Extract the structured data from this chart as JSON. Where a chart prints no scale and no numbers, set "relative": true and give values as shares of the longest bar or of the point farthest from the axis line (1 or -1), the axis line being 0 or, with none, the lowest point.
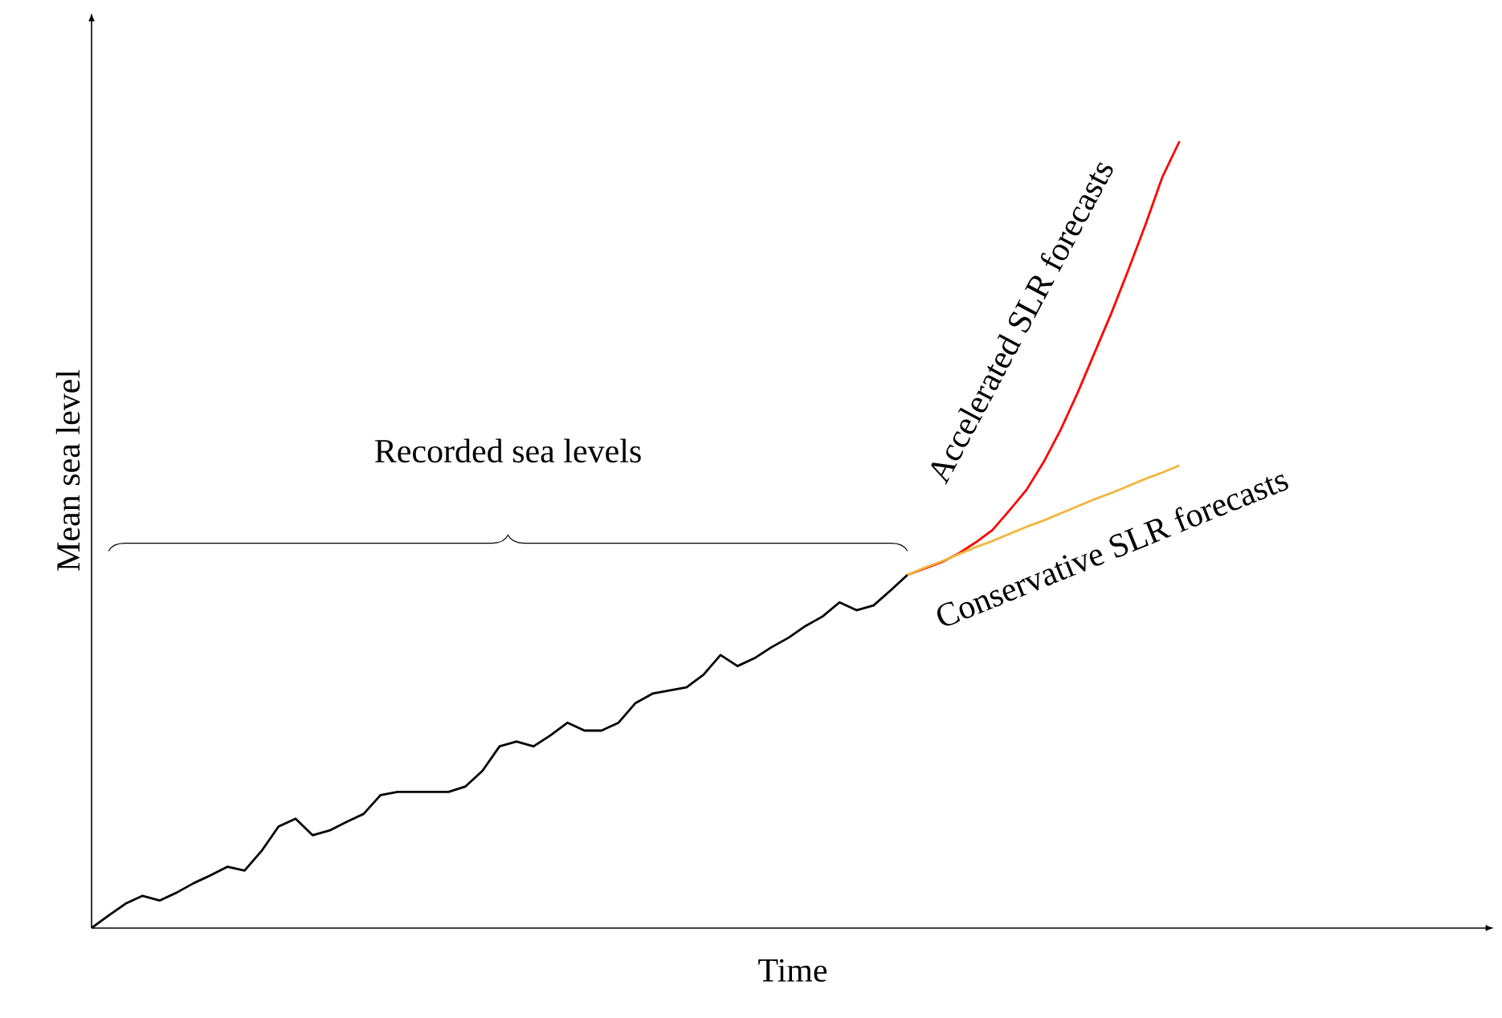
{
  "chart_data": {
    "type": "line",
    "relative": true,
    "xlabel": "Time",
    "ylabel": "Mean sea level",
    "marker": "none",
    "line_style": "solid",
    "annotations": [
      "Recorded sea levels"
    ],
    "categories": [
      null,
      null,
      null,
      null,
      null,
      null,
      null,
      null,
      null,
      null,
      null,
      null,
      null,
      null,
      null,
      null,
      null,
      null,
      null,
      null,
      null,
      null,
      null,
      null,
      null,
      null,
      null,
      null,
      null,
      null,
      null,
      null,
      null,
      null,
      null,
      null,
      null,
      null,
      null,
      null,
      null,
      null,
      null,
      null,
      null,
      null,
      null,
      null,
      null,
      null,
      null,
      null,
      null,
      null,
      null,
      null,
      null,
      null,
      null,
      null,
      null,
      null,
      null,
      null,
      null,
      null,
      null,
      null,
      null,
      null,
      null,
      null,
      null,
      null,
      null,
      null,
      null,
      null,
      null,
      null,
      null,
      null,
      null
    ],
    "series": [
      {
        "color": "#000000",
        "values": [
          0,
          0.016,
          0.031,
          0.041,
          0.035,
          0.045,
          0.057,
          0.067,
          0.078,
          0.073,
          0.098,
          0.129,
          0.139,
          0.118,
          0.124,
          0.135,
          0.145,
          0.169,
          0.173,
          0.173,
          0.173,
          0.173,
          0.18,
          0.2,
          0.231,
          0.237,
          0.231,
          0.245,
          0.261,
          0.251,
          0.251,
          0.261,
          0.286,
          0.298,
          0.302,
          0.306,
          0.322,
          0.347,
          0.333,
          0.343,
          0.357,
          0.369,
          0.384,
          0.396,
          0.414,
          0.404,
          0.41,
          0.429,
          0.449,
          null,
          null,
          null,
          null,
          null,
          null,
          null,
          null,
          null,
          null,
          null,
          null,
          null,
          null,
          null,
          null,
          null,
          null,
          null,
          null,
          null,
          null,
          null,
          null,
          null,
          null,
          null,
          null,
          null,
          null,
          null,
          null,
          null,
          null
        ]
      },
      {
        "name": "Accelerated SLR forecasts",
        "color": "#ff0000",
        "values": [
          null,
          null,
          null,
          null,
          null,
          null,
          null,
          null,
          null,
          null,
          null,
          null,
          null,
          null,
          null,
          null,
          null,
          null,
          null,
          null,
          null,
          null,
          null,
          null,
          null,
          null,
          null,
          null,
          null,
          null,
          null,
          null,
          null,
          null,
          null,
          null,
          null,
          null,
          null,
          null,
          null,
          null,
          null,
          null,
          null,
          null,
          null,
          null,
          0.449,
          0.457,
          0.465,
          0.476,
          0.49,
          0.506,
          0.531,
          0.557,
          0.592,
          0.633,
          0.68,
          0.731,
          0.782,
          0.837,
          0.894,
          0.955,
          1.0,
          null,
          null,
          null,
          null,
          null,
          null,
          null,
          null,
          null,
          null,
          null,
          null,
          null,
          null,
          null,
          null,
          null,
          null
        ]
      },
      {
        "name": "Conservative SLR forecasts",
        "color": "#f2b63c",
        "values": [
          null,
          null,
          null,
          null,
          null,
          null,
          null,
          null,
          null,
          null,
          null,
          null,
          null,
          null,
          null,
          null,
          null,
          null,
          null,
          null,
          null,
          null,
          null,
          null,
          null,
          null,
          null,
          null,
          null,
          null,
          null,
          null,
          null,
          null,
          null,
          null,
          null,
          null,
          null,
          null,
          null,
          null,
          null,
          null,
          null,
          null,
          null,
          null,
          0.449,
          0.458,
          0.466,
          0.475,
          0.484,
          0.492,
          0.501,
          0.51,
          0.518,
          0.527,
          0.536,
          0.545,
          0.553,
          0.562,
          0.571,
          0.579,
          0.588,
          null,
          null,
          null,
          null,
          null,
          null,
          null,
          null,
          null,
          null,
          null,
          null,
          null,
          null,
          null,
          null,
          null,
          null
        ]
      }
    ]
  }
}
